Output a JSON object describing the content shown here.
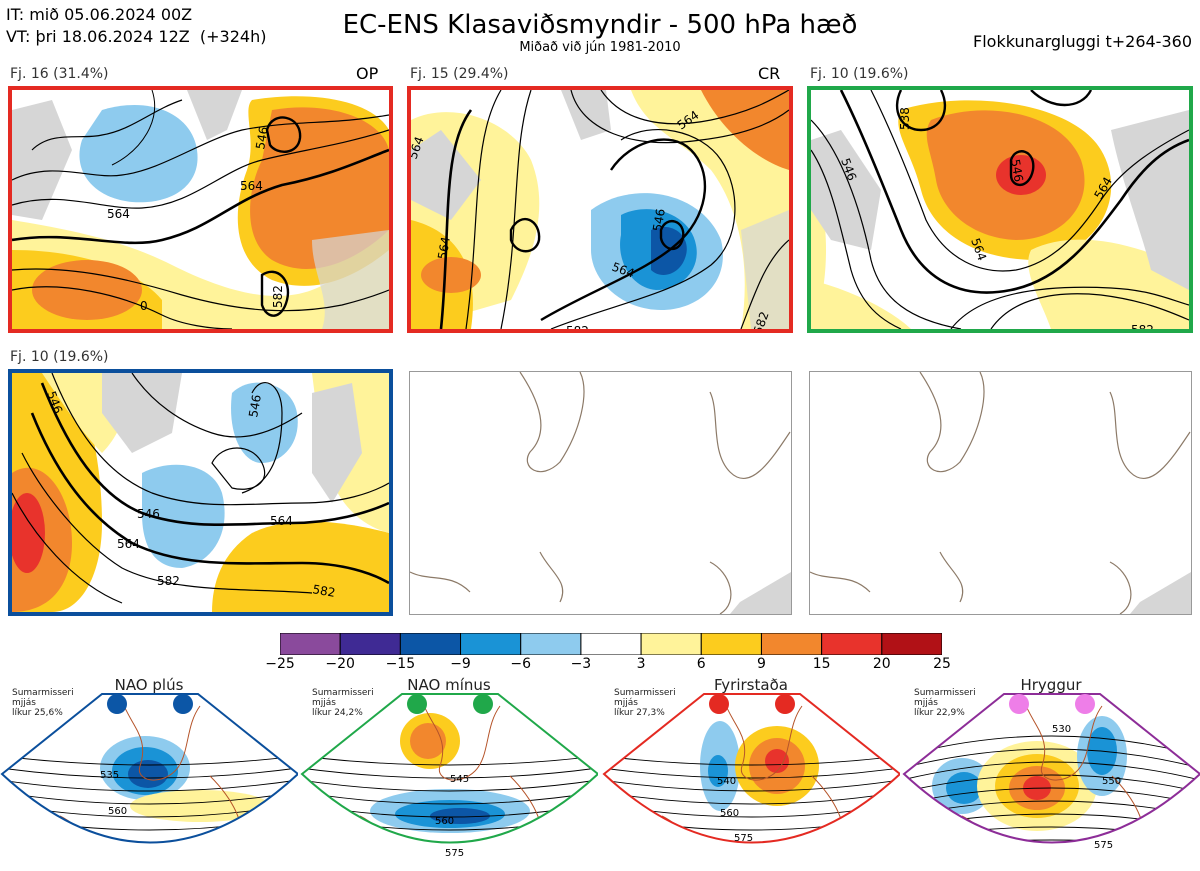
{
  "header": {
    "init_line": "IT: mið 05.06.2024 00Z",
    "valid_line": "VT: þri 18.06.2024 12Z  (+324h)",
    "title": "EC-ENS Klasaviðsmyndir - 500 hPa hæð",
    "subtitle": "Miðað við jún 1981-2010",
    "window": "Flokkunargluggi t+264-360"
  },
  "colors": {
    "red_frame": "#e42a22",
    "green_frame": "#20a84a",
    "blue_frame": "#0b4f9c",
    "purple_frame": "#8d2d98",
    "land": "#d6d6d6",
    "coast": "#8c7a68"
  },
  "clusters": [
    {
      "label": "Fj. 16 (31.4%)",
      "tag": "OP",
      "contours": [
        "564",
        "564",
        "546",
        "582",
        "0"
      ]
    },
    {
      "label": "Fj. 15 (29.4%)",
      "tag": "CR",
      "contours": [
        "564",
        "564",
        "546",
        "564",
        "582",
        "582",
        "564"
      ]
    },
    {
      "label": "Fj. 10 (19.6%)",
      "tag": "",
      "contours": [
        "546",
        "564",
        "564",
        "538",
        "546",
        "582"
      ]
    },
    {
      "label": "Fj. 10 (19.6%)",
      "tag": "",
      "contours": [
        "546",
        "546",
        "564",
        "564",
        "582",
        "582",
        "546"
      ]
    }
  ],
  "colorbar": {
    "ticks": [
      "−25",
      "−20",
      "−15",
      "−9",
      "−6",
      "−3",
      "3",
      "6",
      "9",
      "15",
      "20",
      "25"
    ],
    "colors": [
      "#8a4a9c",
      "#3f2a94",
      "#0c56a6",
      "#1a93d6",
      "#8ecbee",
      "#ffffff",
      "#fff39a",
      "#fccc1e",
      "#f2872d",
      "#e8332c",
      "#b11116"
    ]
  },
  "regimes": [
    {
      "name": "NAO plús",
      "season": "Sumarmisseri",
      "label": "mjjás",
      "prob": "líkur 25,6%",
      "dot_color": "#0c56a6",
      "frame": "#0b4f9c",
      "contours": [
        "535",
        "560"
      ]
    },
    {
      "name": "NAO mínus",
      "season": "Sumarmisseri",
      "label": "mjjás",
      "prob": "líkur 24,2%",
      "dot_color": "#20a84a",
      "frame": "#20a84a",
      "contours": [
        "545",
        "560",
        "575"
      ]
    },
    {
      "name": "Fyrirstaða",
      "season": "Sumarmisseri",
      "label": "mjjás",
      "prob": "líkur 27,3%",
      "dot_color": "#e42a22",
      "frame": "#e42a22",
      "contours": [
        "540",
        "560",
        "575"
      ]
    },
    {
      "name": "Hryggur",
      "season": "Sumarmisseri",
      "label": "mjjás",
      "prob": "líkur 22,9%",
      "dot_color": "#ee7ee8",
      "frame": "#8d2d98",
      "contours": [
        "530",
        "550",
        "575"
      ]
    }
  ]
}
